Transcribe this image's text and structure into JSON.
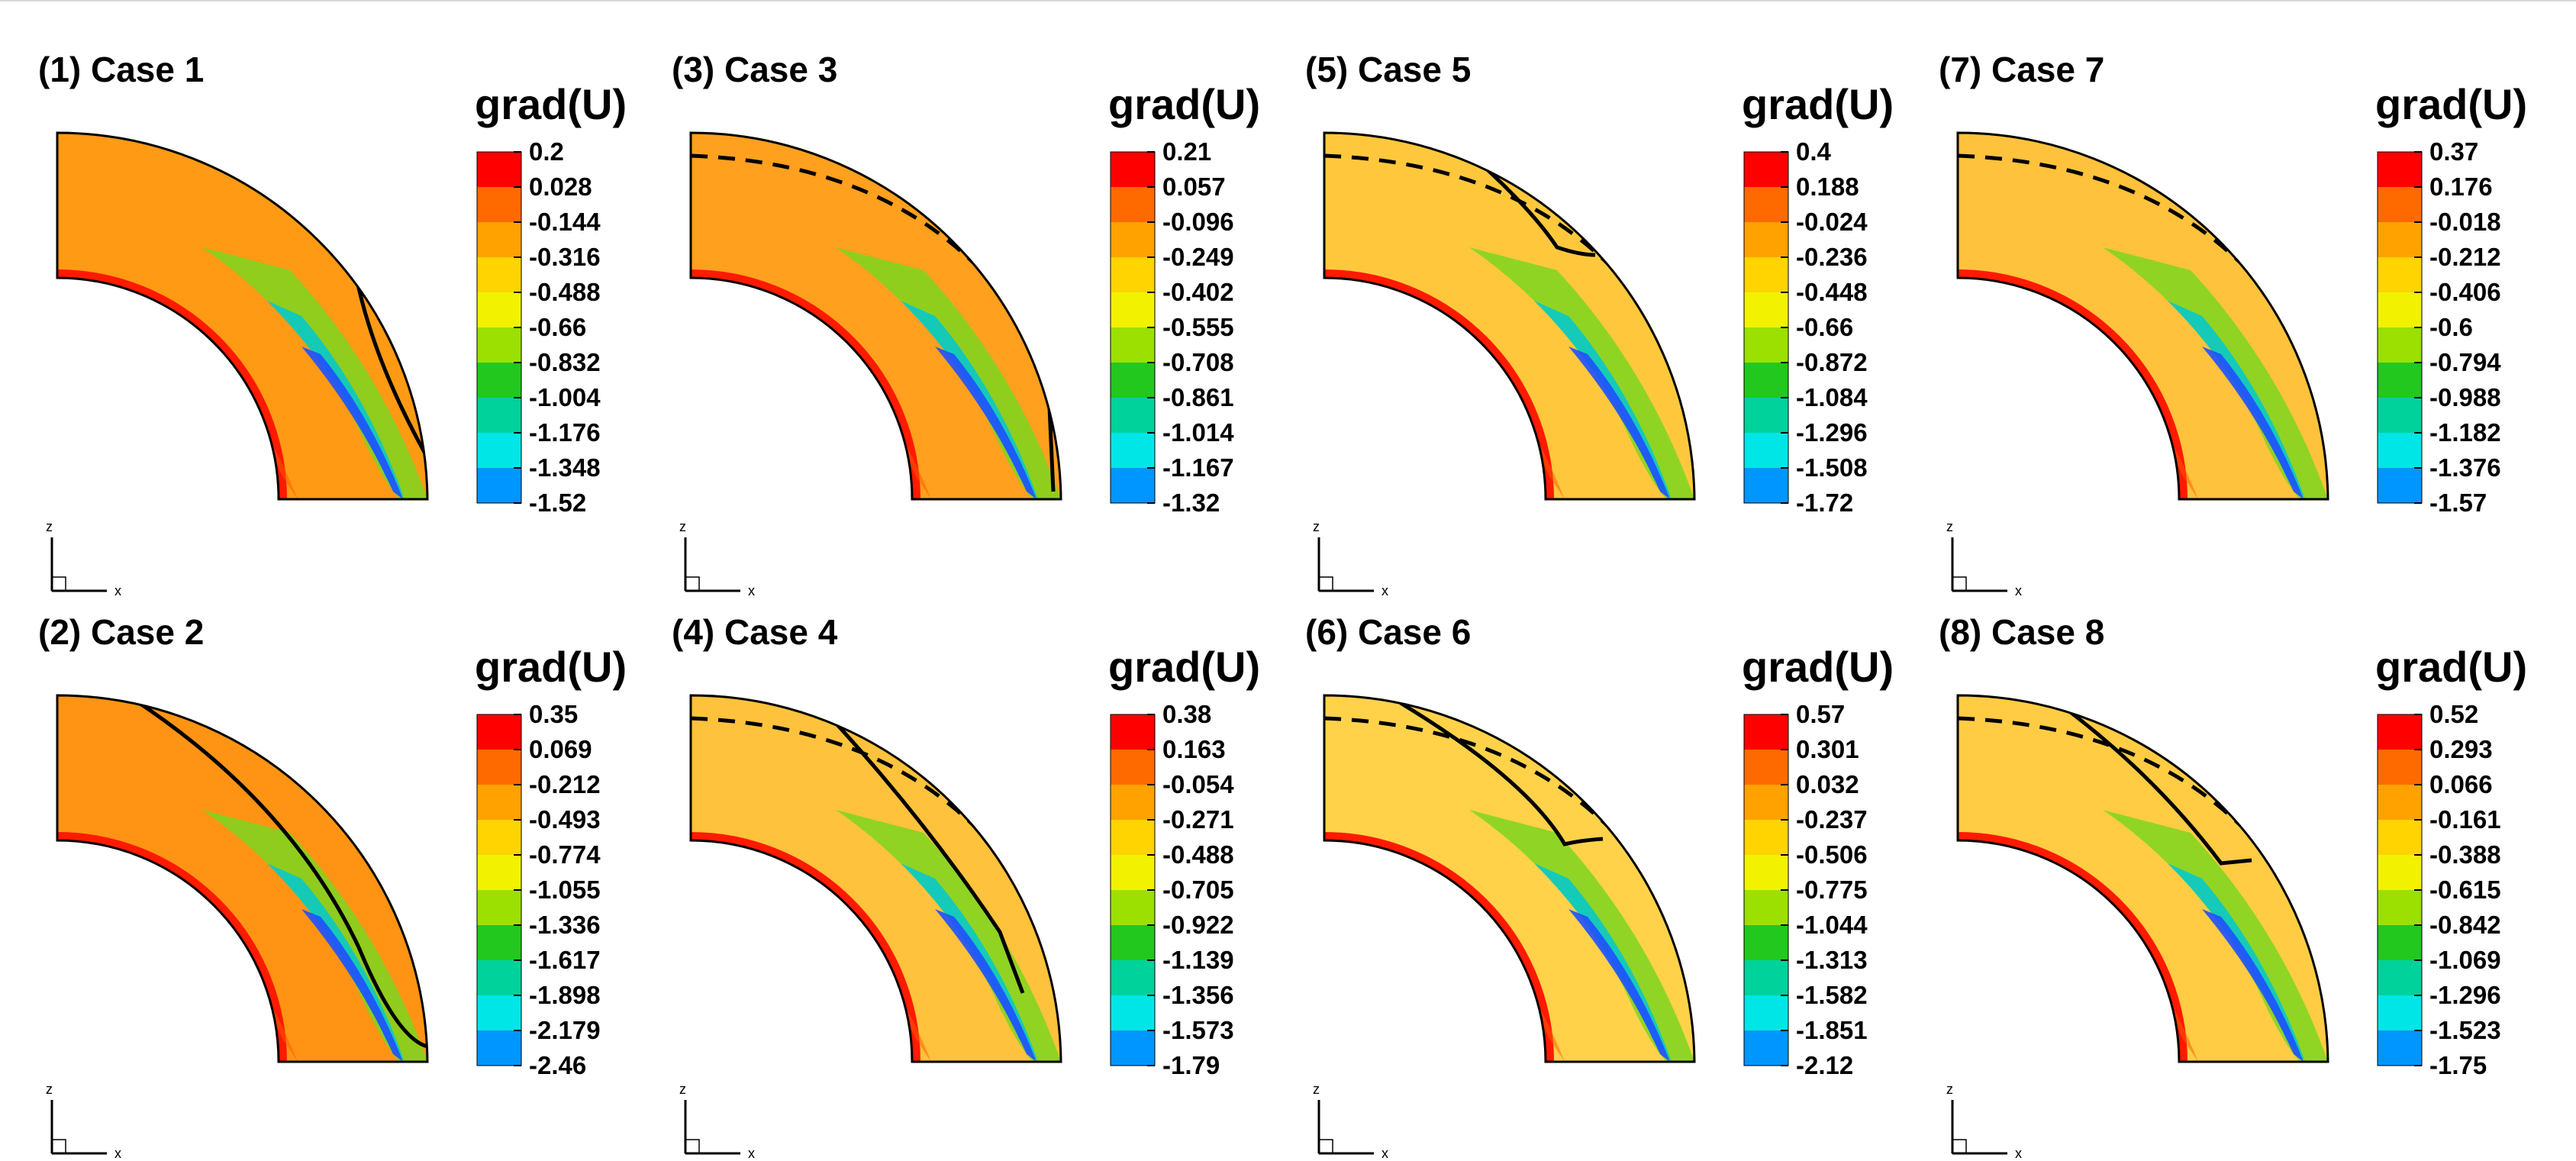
{
  "chart_data": [
    {
      "type": "contour",
      "title": "(1) Case 1",
      "legend_title": "grad(U)",
      "levels": [
        "0.2",
        "0.028",
        "-0.144",
        "-0.316",
        "-0.488",
        "-0.66",
        "-0.832",
        "-1.004",
        "-1.176",
        "-1.348",
        "-1.52"
      ],
      "axis_x_label": "x",
      "axis_z_label": "z"
    },
    {
      "type": "contour",
      "title": "(2) Case 2",
      "legend_title": "grad(U)",
      "levels": [
        "0.35",
        "0.069",
        "-0.212",
        "-0.493",
        "-0.774",
        "-1.055",
        "-1.336",
        "-1.617",
        "-1.898",
        "-2.179",
        "-2.46"
      ],
      "axis_x_label": "x",
      "axis_z_label": "z"
    },
    {
      "type": "contour",
      "title": "(3) Case 3",
      "legend_title": "grad(U)",
      "levels": [
        "0.21",
        "0.057",
        "-0.096",
        "-0.249",
        "-0.402",
        "-0.555",
        "-0.708",
        "-0.861",
        "-1.014",
        "-1.167",
        "-1.32"
      ],
      "axis_x_label": "x",
      "axis_z_label": "z"
    },
    {
      "type": "contour",
      "title": "(4) Case 4",
      "legend_title": "grad(U)",
      "levels": [
        "0.38",
        "0.163",
        "-0.054",
        "-0.271",
        "-0.488",
        "-0.705",
        "-0.922",
        "-1.139",
        "-1.356",
        "-1.573",
        "-1.79"
      ],
      "axis_x_label": "x",
      "axis_z_label": "z"
    },
    {
      "type": "contour",
      "title": "(5) Case 5",
      "legend_title": "grad(U)",
      "levels": [
        "0.4",
        "0.188",
        "-0.024",
        "-0.236",
        "-0.448",
        "-0.66",
        "-0.872",
        "-1.084",
        "-1.296",
        "-1.508",
        "-1.72"
      ],
      "axis_x_label": "x",
      "axis_z_label": "z"
    },
    {
      "type": "contour",
      "title": "(6) Case 6",
      "legend_title": "grad(U)",
      "levels": [
        "0.57",
        "0.301",
        "0.032",
        "-0.237",
        "-0.506",
        "-0.775",
        "-1.044",
        "-1.313",
        "-1.582",
        "-1.851",
        "-2.12"
      ],
      "axis_x_label": "x",
      "axis_z_label": "z"
    },
    {
      "type": "contour",
      "title": "(7) Case 7",
      "legend_title": "grad(U)",
      "levels": [
        "0.37",
        "0.176",
        "-0.018",
        "-0.212",
        "-0.406",
        "-0.6",
        "-0.794",
        "-0.988",
        "-1.182",
        "-1.376",
        "-1.57"
      ],
      "axis_x_label": "x",
      "axis_z_label": "z"
    },
    {
      "type": "contour",
      "title": "(8) Case 8",
      "legend_title": "grad(U)",
      "levels": [
        "0.52",
        "0.293",
        "0.066",
        "-0.161",
        "-0.388",
        "-0.615",
        "-0.842",
        "-1.069",
        "-1.296",
        "-1.523",
        "-1.75"
      ],
      "axis_x_label": "x",
      "axis_z_label": "z"
    }
  ],
  "colormap": [
    "#ff0000",
    "#ff6a00",
    "#ffa200",
    "#ffd400",
    "#f2f200",
    "#9be000",
    "#22c81e",
    "#00d29b",
    "#00e6e6",
    "#0096ff",
    "#1e28ff"
  ]
}
